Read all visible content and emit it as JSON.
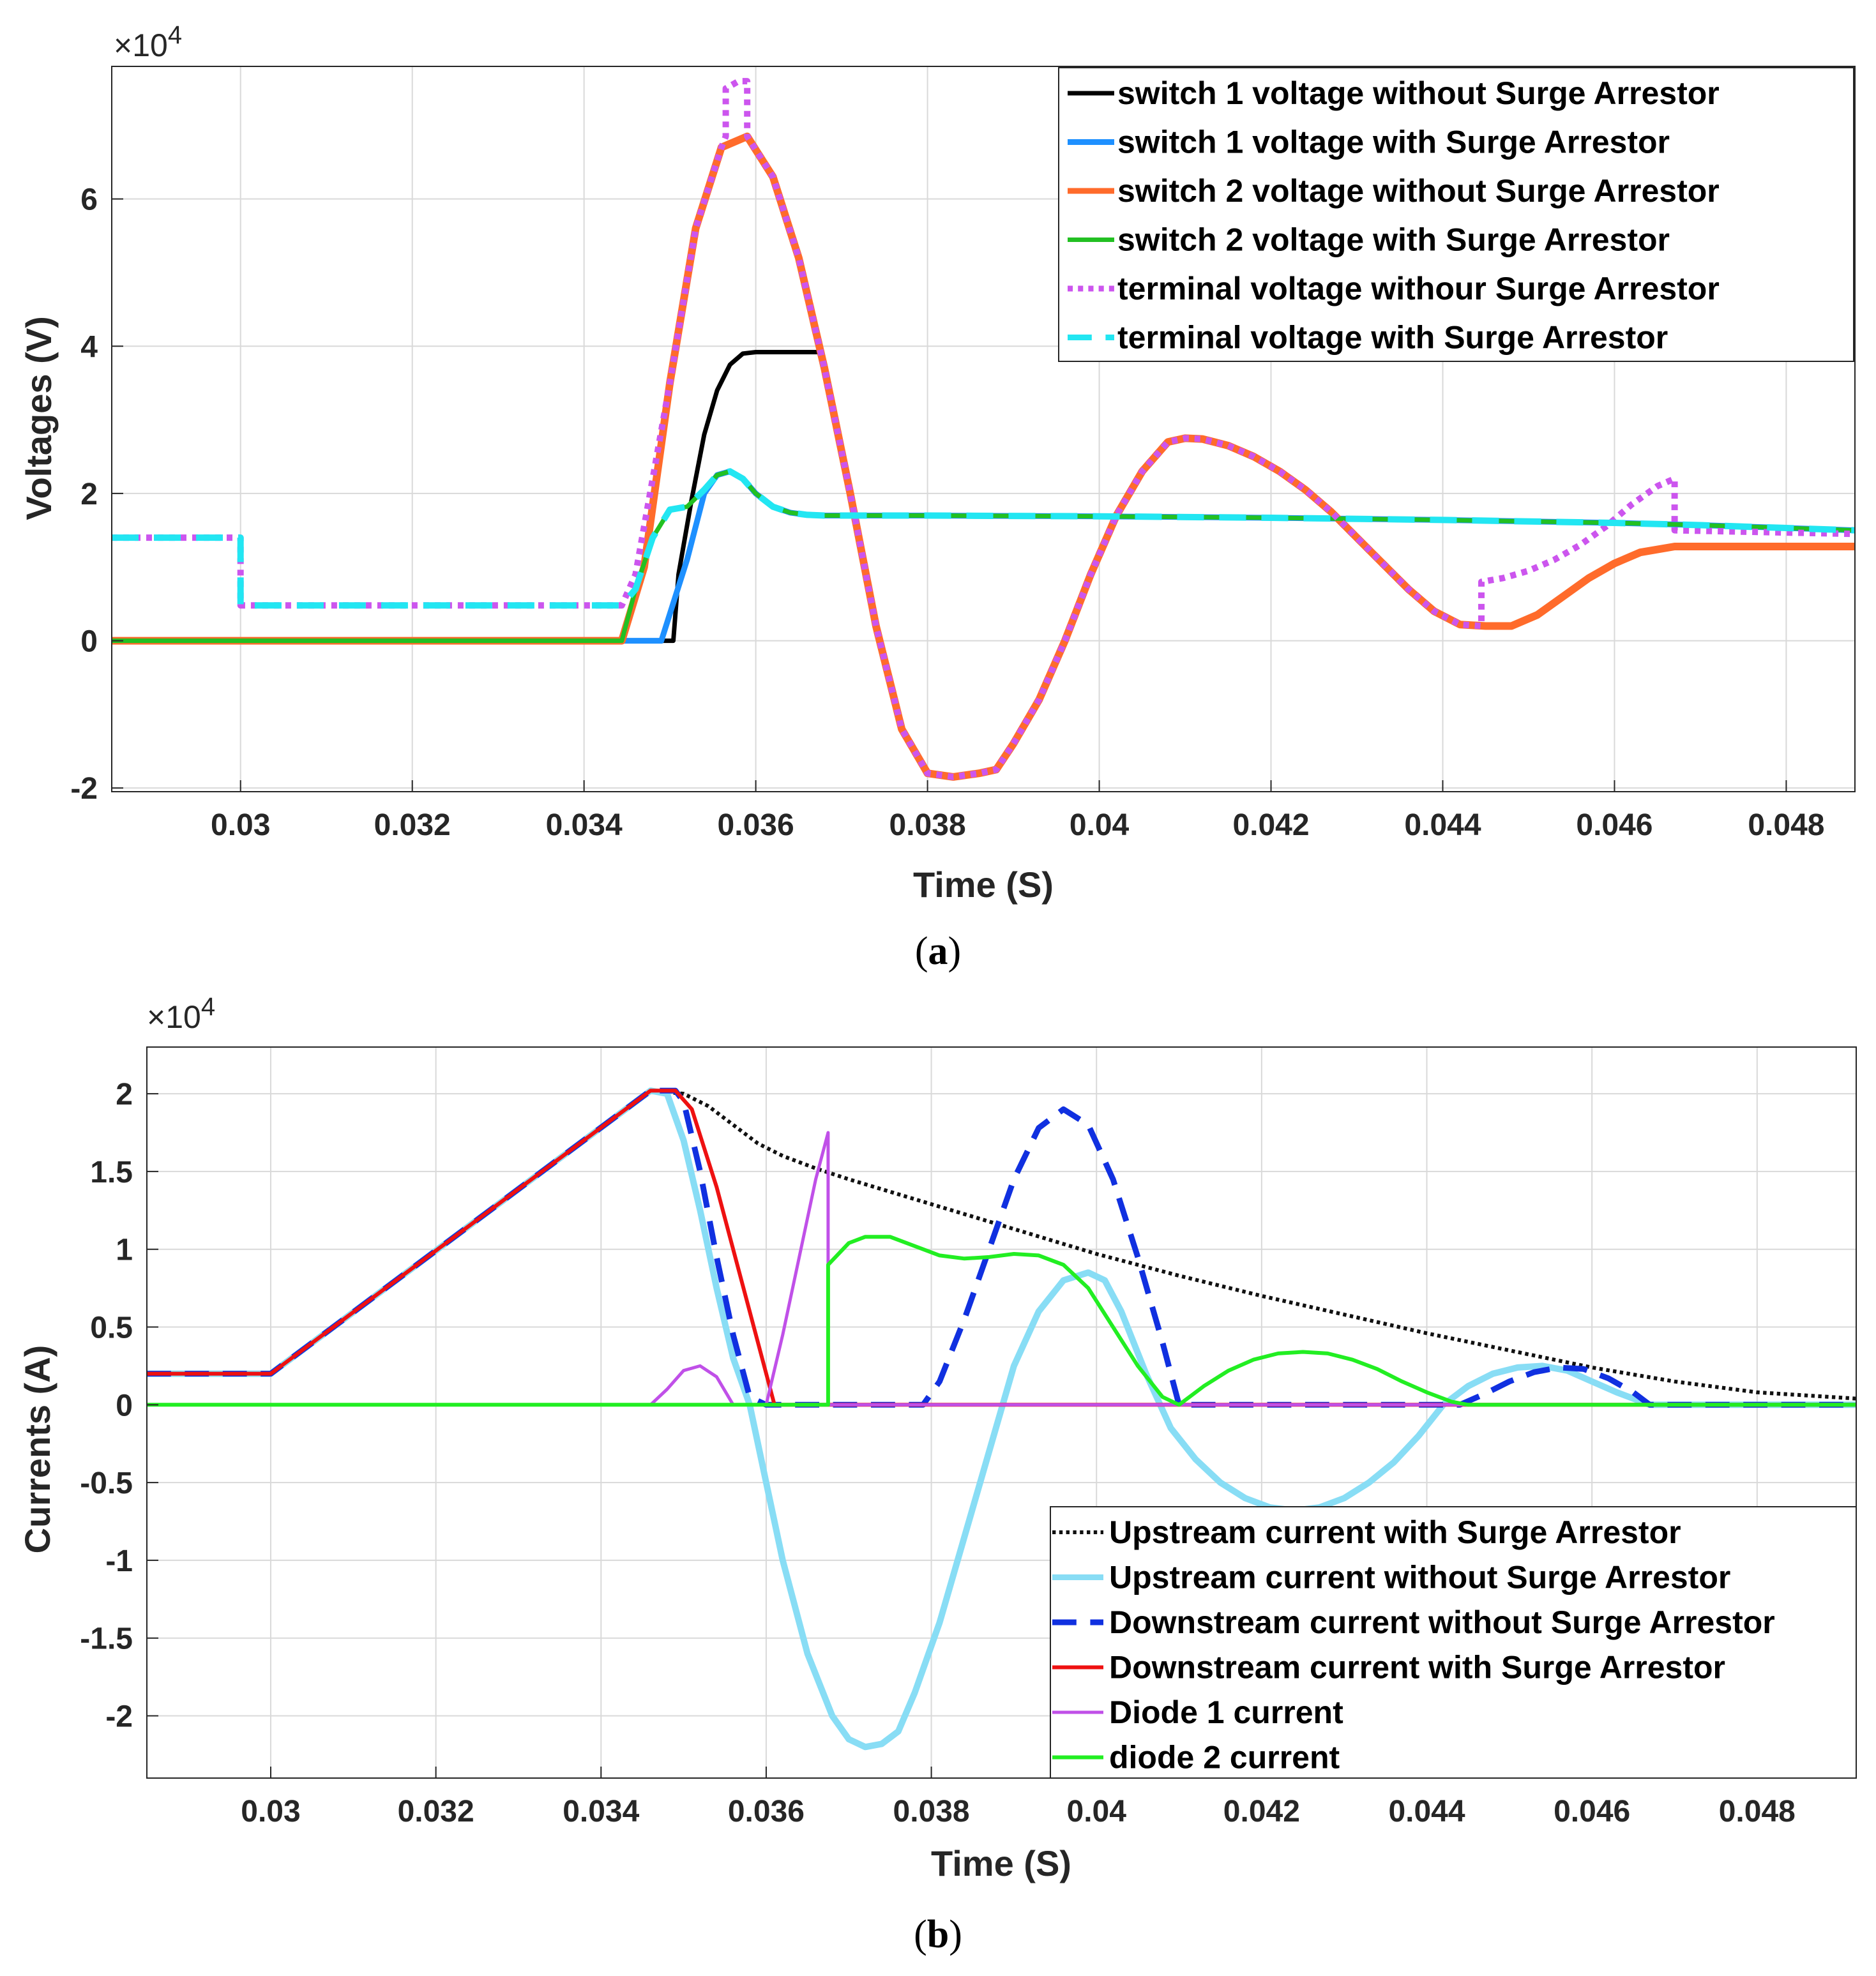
{
  "chart_data": [
    {
      "type": "line",
      "id": "a",
      "caption": {
        "open": "(",
        "letter": "a",
        "close": ")"
      },
      "xlabel": "Time (S)",
      "ylabel": "Voltages (V)",
      "exponent": {
        "base": "×10",
        "power": "4"
      },
      "xlim": [
        0.0285,
        0.0488
      ],
      "ylim": [
        -2.05,
        7.8
      ],
      "xticks": [
        0.03,
        0.032,
        0.034,
        0.036,
        0.038,
        0.04,
        0.042,
        0.044,
        0.046,
        0.048
      ],
      "xtick_labels": [
        "0.03",
        "0.032",
        "0.034",
        "0.036",
        "0.038",
        "0.04",
        "0.042",
        "0.044",
        "0.046",
        "0.048"
      ],
      "yticks": [
        -2,
        0,
        2,
        4,
        6
      ],
      "ytick_labels": [
        "-2",
        "0",
        "2",
        "4",
        "6"
      ],
      "legend": "top-right",
      "grid": true,
      "series": [
        {
          "name": "switch 1 voltage without Surge Arrestor",
          "color": "#000000",
          "style": "solid",
          "width": 7,
          "x": [
            0.0285,
            0.03504,
            0.0351,
            0.03525,
            0.0354,
            0.03555,
            0.0357,
            0.03585,
            0.036,
            0.0363,
            0.03675
          ],
          "y": [
            0,
            0,
            0.9,
            1.9,
            2.8,
            3.4,
            3.75,
            3.9,
            3.92,
            3.92,
            3.92
          ]
        },
        {
          "name": "switch 1 voltage with Surge Arrestor",
          "color": "#1E90FF",
          "style": "solid",
          "width": 9,
          "x": [
            0.0285,
            0.0349,
            0.0352,
            0.0354,
            0.03555,
            0.0357,
            0.03585,
            0.036,
            0.0362,
            0.0364,
            0.0366,
            0.0368,
            0.038,
            0.04,
            0.042,
            0.044,
            0.046,
            0.047,
            0.0488
          ],
          "y": [
            0,
            0,
            1.1,
            2.0,
            2.25,
            2.3,
            2.2,
            2.0,
            1.82,
            1.74,
            1.71,
            1.7,
            1.7,
            1.69,
            1.67,
            1.64,
            1.6,
            1.57,
            1.5
          ]
        },
        {
          "name": "switch 2 voltage without Surge Arrestor",
          "color": "#FF6B2B",
          "style": "solid",
          "width": 12,
          "x": [
            0.0285,
            0.03444,
            0.0347,
            0.035,
            0.0353,
            0.0356,
            0.0359,
            0.0362,
            0.0365,
            0.0368,
            0.0371,
            0.0374,
            0.0377,
            0.038,
            0.0383,
            0.0386,
            0.0388,
            0.039,
            0.0393,
            0.0396,
            0.0399,
            0.0402,
            0.0405,
            0.0408,
            0.041,
            0.0412,
            0.0415,
            0.0418,
            0.0421,
            0.0424,
            0.0427,
            0.043,
            0.0433,
            0.0436,
            0.0439,
            0.0442,
            0.0445,
            0.0448,
            0.0451,
            0.0454,
            0.0457,
            0.046,
            0.0463,
            0.0467,
            0.0488
          ],
          "y": [
            0,
            0,
            1.0,
            3.5,
            5.6,
            6.7,
            6.85,
            6.3,
            5.2,
            3.7,
            2.0,
            0.2,
            -1.2,
            -1.8,
            -1.85,
            -1.8,
            -1.75,
            -1.4,
            -0.8,
            0.0,
            0.9,
            1.7,
            2.3,
            2.7,
            2.75,
            2.74,
            2.65,
            2.5,
            2.3,
            2.05,
            1.75,
            1.4,
            1.05,
            0.7,
            0.4,
            0.22,
            0.2,
            0.2,
            0.35,
            0.6,
            0.85,
            1.05,
            1.2,
            1.28,
            1.28
          ]
        },
        {
          "name": "switch 2 voltage with Surge Arrestor",
          "color": "#22C022",
          "style": "solid",
          "width": 7,
          "x": [
            0.0285,
            0.03444,
            0.0346,
            0.0348,
            0.035,
            0.0352,
            0.0354,
            0.03555,
            0.0357,
            0.03585,
            0.036,
            0.0362,
            0.0364,
            0.0366,
            0.0368,
            0.038,
            0.04,
            0.042,
            0.044,
            0.046,
            0.047,
            0.0488
          ],
          "y": [
            0,
            0,
            0.7,
            1.4,
            1.78,
            1.82,
            2.05,
            2.25,
            2.3,
            2.2,
            2.0,
            1.82,
            1.74,
            1.71,
            1.7,
            1.7,
            1.69,
            1.67,
            1.64,
            1.6,
            1.57,
            1.5
          ]
        },
        {
          "name": "terminal voltage withour Surge Arrestor",
          "color": "#CC55EE",
          "style": "dotted",
          "width": 10,
          "x": [
            0.0285,
            0.03,
            0.03,
            0.03444,
            0.0346,
            0.035,
            0.0353,
            0.0356,
            0.03565,
            0.03565,
            0.0358,
            0.0359,
            0.0359,
            0.0362,
            0.0365,
            0.0368,
            0.0371,
            0.0374,
            0.0377,
            0.038,
            0.0383,
            0.0386,
            0.0388,
            0.039,
            0.0393,
            0.0396,
            0.0399,
            0.0402,
            0.0405,
            0.0408,
            0.041,
            0.0412,
            0.0415,
            0.0418,
            0.0421,
            0.0424,
            0.0427,
            0.043,
            0.0433,
            0.0436,
            0.0439,
            0.0442,
            0.04445,
            0.04445,
            0.0447,
            0.045,
            0.0453,
            0.0456,
            0.0459,
            0.0462,
            0.0465,
            0.0467,
            0.0467,
            0.0488
          ],
          "y": [
            1.4,
            1.4,
            0.48,
            0.48,
            0.9,
            3.5,
            5.6,
            6.7,
            6.85,
            7.5,
            7.6,
            7.6,
            6.85,
            6.3,
            5.2,
            3.7,
            2.0,
            0.2,
            -1.2,
            -1.8,
            -1.85,
            -1.8,
            -1.75,
            -1.4,
            -0.8,
            0.0,
            0.9,
            1.7,
            2.3,
            2.7,
            2.75,
            2.74,
            2.65,
            2.5,
            2.3,
            2.05,
            1.75,
            1.4,
            1.05,
            0.7,
            0.4,
            0.22,
            0.2,
            0.8,
            0.85,
            0.95,
            1.1,
            1.3,
            1.55,
            1.85,
            2.1,
            2.2,
            1.5,
            1.45
          ]
        },
        {
          "name": "terminal voltage with Surge Arrestor",
          "color": "#22E6F2",
          "style": "dashed",
          "width": 10,
          "x": [
            0.0285,
            0.03,
            0.03,
            0.03444,
            0.0346,
            0.0348,
            0.035,
            0.0352,
            0.0354,
            0.03555,
            0.0357,
            0.03585,
            0.036,
            0.0362,
            0.0364,
            0.0366,
            0.0368,
            0.038,
            0.04,
            0.042,
            0.044,
            0.046,
            0.047,
            0.0488
          ],
          "y": [
            1.4,
            1.4,
            0.48,
            0.48,
            0.7,
            1.4,
            1.78,
            1.82,
            2.05,
            2.25,
            2.3,
            2.2,
            2.0,
            1.82,
            1.74,
            1.71,
            1.7,
            1.7,
            1.69,
            1.67,
            1.64,
            1.6,
            1.57,
            1.5
          ]
        }
      ]
    },
    {
      "type": "line",
      "id": "b",
      "caption": {
        "open": "(",
        "letter": "b",
        "close": ")"
      },
      "xlabel": "Time (S)",
      "ylabel": "Currents (A)",
      "exponent": {
        "base": "×10",
        "power": "4"
      },
      "xlim": [
        0.0285,
        0.0492
      ],
      "ylim": [
        -2.4,
        2.3
      ],
      "xticks": [
        0.03,
        0.032,
        0.034,
        0.036,
        0.038,
        0.04,
        0.042,
        0.044,
        0.046,
        0.048
      ],
      "xtick_labels": [
        "0.03",
        "0.032",
        "0.034",
        "0.036",
        "0.038",
        "0.04",
        "0.042",
        "0.044",
        "0.046",
        "0.048"
      ],
      "yticks": [
        -2,
        -1.5,
        -1,
        -0.5,
        0,
        0.5,
        1,
        1.5,
        2
      ],
      "ytick_labels": [
        "-2",
        "-1.5",
        "-1",
        "-0.5",
        "0",
        "0.5",
        "1",
        "1.5",
        "2"
      ],
      "legend": "bottom-right",
      "grid": true,
      "series": [
        {
          "name": "Upstream current with Surge Arrestor",
          "color": "#111111",
          "style": "dotted",
          "width": 6,
          "x": [
            0.0285,
            0.03,
            0.0346,
            0.035,
            0.0353,
            0.0356,
            0.0359,
            0.0362,
            0.0366,
            0.037,
            0.0375,
            0.038,
            0.0385,
            0.039,
            0.0395,
            0.04,
            0.041,
            0.042,
            0.043,
            0.044,
            0.045,
            0.046,
            0.047,
            0.048,
            0.0492
          ],
          "y": [
            0.2,
            0.2,
            2.02,
            2.0,
            1.92,
            1.8,
            1.68,
            1.6,
            1.52,
            1.45,
            1.37,
            1.29,
            1.21,
            1.13,
            1.05,
            0.97,
            0.83,
            0.7,
            0.58,
            0.46,
            0.35,
            0.24,
            0.15,
            0.08,
            0.04
          ]
        },
        {
          "name": "Upstream current without Surge Arrestor",
          "color": "#88DDF5",
          "style": "solid",
          "width": 10,
          "x": [
            0.0285,
            0.03,
            0.0346,
            0.0348,
            0.035,
            0.0352,
            0.0354,
            0.0356,
            0.0358,
            0.036,
            0.0362,
            0.0365,
            0.0368,
            0.037,
            0.0372,
            0.0374,
            0.0376,
            0.0378,
            0.0381,
            0.0384,
            0.0387,
            0.039,
            0.0393,
            0.0396,
            0.0399,
            0.0401,
            0.0403,
            0.0406,
            0.0409,
            0.0412,
            0.0415,
            0.0418,
            0.0421,
            0.0424,
            0.0427,
            0.043,
            0.0433,
            0.0436,
            0.0439,
            0.0442,
            0.0445,
            0.0448,
            0.0451,
            0.0454,
            0.0457,
            0.046,
            0.0463,
            0.0467,
            0.0492
          ],
          "y": [
            0.2,
            0.2,
            2.02,
            2.0,
            1.7,
            1.25,
            0.75,
            0.3,
            0.0,
            -0.5,
            -1.0,
            -1.6,
            -2.0,
            -2.15,
            -2.2,
            -2.18,
            -2.1,
            -1.85,
            -1.4,
            -0.85,
            -0.3,
            0.25,
            0.6,
            0.8,
            0.85,
            0.8,
            0.6,
            0.2,
            -0.15,
            -0.35,
            -0.5,
            -0.6,
            -0.66,
            -0.68,
            -0.66,
            -0.6,
            -0.5,
            -0.37,
            -0.2,
            0.0,
            0.12,
            0.2,
            0.24,
            0.25,
            0.22,
            0.15,
            0.08,
            0.0,
            0.0
          ]
        },
        {
          "name": "Downstream current without Surge Arrestor",
          "color": "#1030E0",
          "style": "dashed",
          "width": 9,
          "x": [
            0.0285,
            0.03,
            0.0346,
            0.0349,
            0.035,
            0.0352,
            0.0354,
            0.0356,
            0.0358,
            0.036,
            0.0379,
            0.0381,
            0.0384,
            0.0387,
            0.039,
            0.0393,
            0.0396,
            0.0399,
            0.0402,
            0.0405,
            0.0408,
            0.041,
            0.0444,
            0.0447,
            0.045,
            0.0453,
            0.0456,
            0.0459,
            0.0462,
            0.0465,
            0.0467,
            0.0492
          ],
          "y": [
            0.2,
            0.2,
            2.02,
            2.02,
            1.95,
            1.5,
            0.95,
            0.45,
            0.05,
            0.0,
            0.0,
            0.15,
            0.55,
            1.0,
            1.45,
            1.78,
            1.9,
            1.8,
            1.45,
            0.95,
            0.4,
            0.0,
            0.0,
            0.07,
            0.15,
            0.21,
            0.24,
            0.23,
            0.17,
            0.08,
            0.0,
            0.0
          ]
        },
        {
          "name": "Downstream current with Surge Arrestor",
          "color": "#EE1111",
          "style": "solid",
          "width": 6,
          "x": [
            0.0285,
            0.03,
            0.0346,
            0.0349,
            0.0351,
            0.0354,
            0.0358,
            0.0361,
            0.0492
          ],
          "y": [
            0.2,
            0.2,
            2.02,
            2.02,
            1.9,
            1.4,
            0.6,
            0.0,
            0.0
          ]
        },
        {
          "name": "Diode 1 current",
          "color": "#C050E8",
          "style": "solid",
          "width": 5,
          "x": [
            0.0285,
            0.0346,
            0.0348,
            0.035,
            0.0352,
            0.0354,
            0.0356,
            0.0358,
            0.036,
            0.0362,
            0.0364,
            0.0366,
            0.03675,
            0.03675,
            0.0492
          ],
          "y": [
            0,
            0,
            0.1,
            0.22,
            0.25,
            0.18,
            0.0,
            0.0,
            0.0,
            0.45,
            0.95,
            1.45,
            1.75,
            0.0,
            0.0
          ]
        },
        {
          "name": "diode 2 current",
          "color": "#22EE22",
          "style": "solid",
          "width": 6,
          "x": [
            0.0285,
            0.03675,
            0.03675,
            0.037,
            0.0372,
            0.0375,
            0.0378,
            0.0381,
            0.0384,
            0.0387,
            0.039,
            0.0393,
            0.0396,
            0.0399,
            0.0402,
            0.0405,
            0.0408,
            0.041,
            0.0413,
            0.0416,
            0.0419,
            0.0422,
            0.0425,
            0.0428,
            0.0431,
            0.0434,
            0.0437,
            0.044,
            0.0443,
            0.0445,
            0.0492
          ],
          "y": [
            0,
            0,
            0.9,
            1.04,
            1.08,
            1.08,
            1.02,
            0.96,
            0.94,
            0.95,
            0.97,
            0.96,
            0.9,
            0.75,
            0.5,
            0.25,
            0.05,
            0.0,
            0.12,
            0.22,
            0.29,
            0.33,
            0.34,
            0.33,
            0.29,
            0.23,
            0.15,
            0.08,
            0.02,
            0.0,
            0.0
          ]
        }
      ]
    }
  ]
}
